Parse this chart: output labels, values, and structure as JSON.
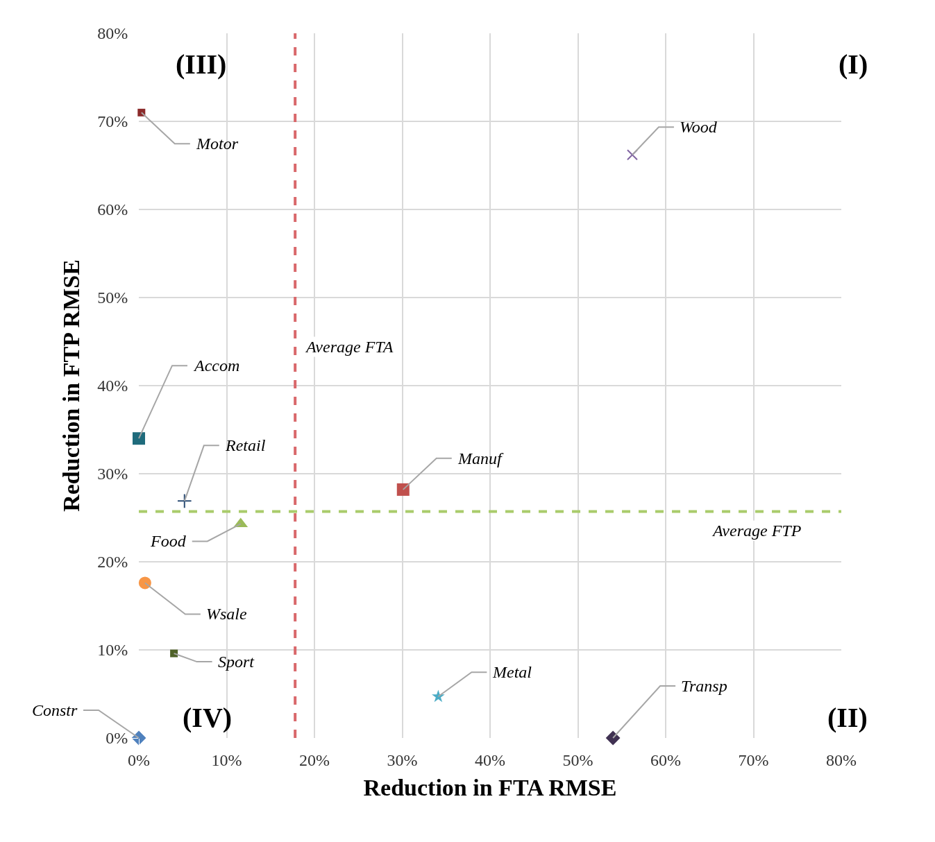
{
  "chart_data": {
    "type": "scatter",
    "xlabel": "Reduction in FTA RMSE",
    "ylabel": "Reduction in FTP RMSE",
    "xlim": [
      0,
      80
    ],
    "ylim": [
      0,
      80
    ],
    "xticks": [
      {
        "value": 0,
        "label": "0%"
      },
      {
        "value": 10,
        "label": "10%"
      },
      {
        "value": 20,
        "label": "20%"
      },
      {
        "value": 30,
        "label": "30%"
      },
      {
        "value": 40,
        "label": "40%"
      },
      {
        "value": 50,
        "label": "50%"
      },
      {
        "value": 60,
        "label": "60%"
      },
      {
        "value": 70,
        "label": "70%"
      },
      {
        "value": 80,
        "label": "80%"
      }
    ],
    "yticks": [
      {
        "value": 0,
        "label": "0%"
      },
      {
        "value": 10,
        "label": "10%"
      },
      {
        "value": 20,
        "label": "20%"
      },
      {
        "value": 30,
        "label": "30%"
      },
      {
        "value": 40,
        "label": "40%"
      },
      {
        "value": 50,
        "label": "50%"
      },
      {
        "value": 60,
        "label": "60%"
      },
      {
        "value": 70,
        "label": "70%"
      },
      {
        "value": 80,
        "label": "80%"
      }
    ],
    "grid": true,
    "legend": false,
    "series": [
      {
        "name": "Motor",
        "color": "#8b2a2a",
        "marker": "square",
        "x": [
          0.3
        ],
        "values": [
          71.0
        ]
      },
      {
        "name": "Wood",
        "color": "#8064a2",
        "marker": "cross",
        "x": [
          56.2
        ],
        "values": [
          66.2
        ]
      },
      {
        "name": "Accom",
        "color": "#1f6b7c",
        "marker": "square",
        "x": [
          0
        ],
        "values": [
          34.0
        ]
      },
      {
        "name": "Retail",
        "color": "#2c4d75",
        "marker": "cross",
        "x": [
          5.2
        ],
        "values": [
          26.9
        ]
      },
      {
        "name": "Manuf",
        "color": "#c0504d",
        "marker": "square",
        "x": [
          30.1
        ],
        "values": [
          28.2
        ]
      },
      {
        "name": "Food",
        "color": "#9bbb59",
        "marker": "triangle",
        "x": [
          11.6
        ],
        "values": [
          24.3
        ]
      },
      {
        "name": "Wsale",
        "color": "#f79646",
        "marker": "circle",
        "x": [
          0.7
        ],
        "values": [
          17.6
        ]
      },
      {
        "name": "Sport",
        "color": "#4f6228",
        "marker": "square",
        "x": [
          4.0
        ],
        "values": [
          9.6
        ]
      },
      {
        "name": "Constr",
        "color": "#4f81bd",
        "marker": "diamond",
        "x": [
          0
        ],
        "values": [
          0
        ]
      },
      {
        "name": "Metal",
        "color": "#4bacc6",
        "marker": "star",
        "x": [
          34.1
        ],
        "values": [
          4.7
        ]
      },
      {
        "name": "Transp",
        "color": "#403152",
        "marker": "diamond",
        "x": [
          54.0
        ],
        "values": [
          0
        ]
      }
    ],
    "ref_lines": [
      {
        "axis": "x",
        "value": 17.8,
        "label": "Average FTA",
        "color": "#d9686b",
        "line_style": "dashed"
      },
      {
        "axis": "y",
        "value": 25.7,
        "label": "Average FTP",
        "color": "#a9cc6b",
        "line_style": "dashed"
      }
    ],
    "annotations": [
      "(III)",
      "(I)",
      "(IV)",
      "(II)"
    ]
  }
}
